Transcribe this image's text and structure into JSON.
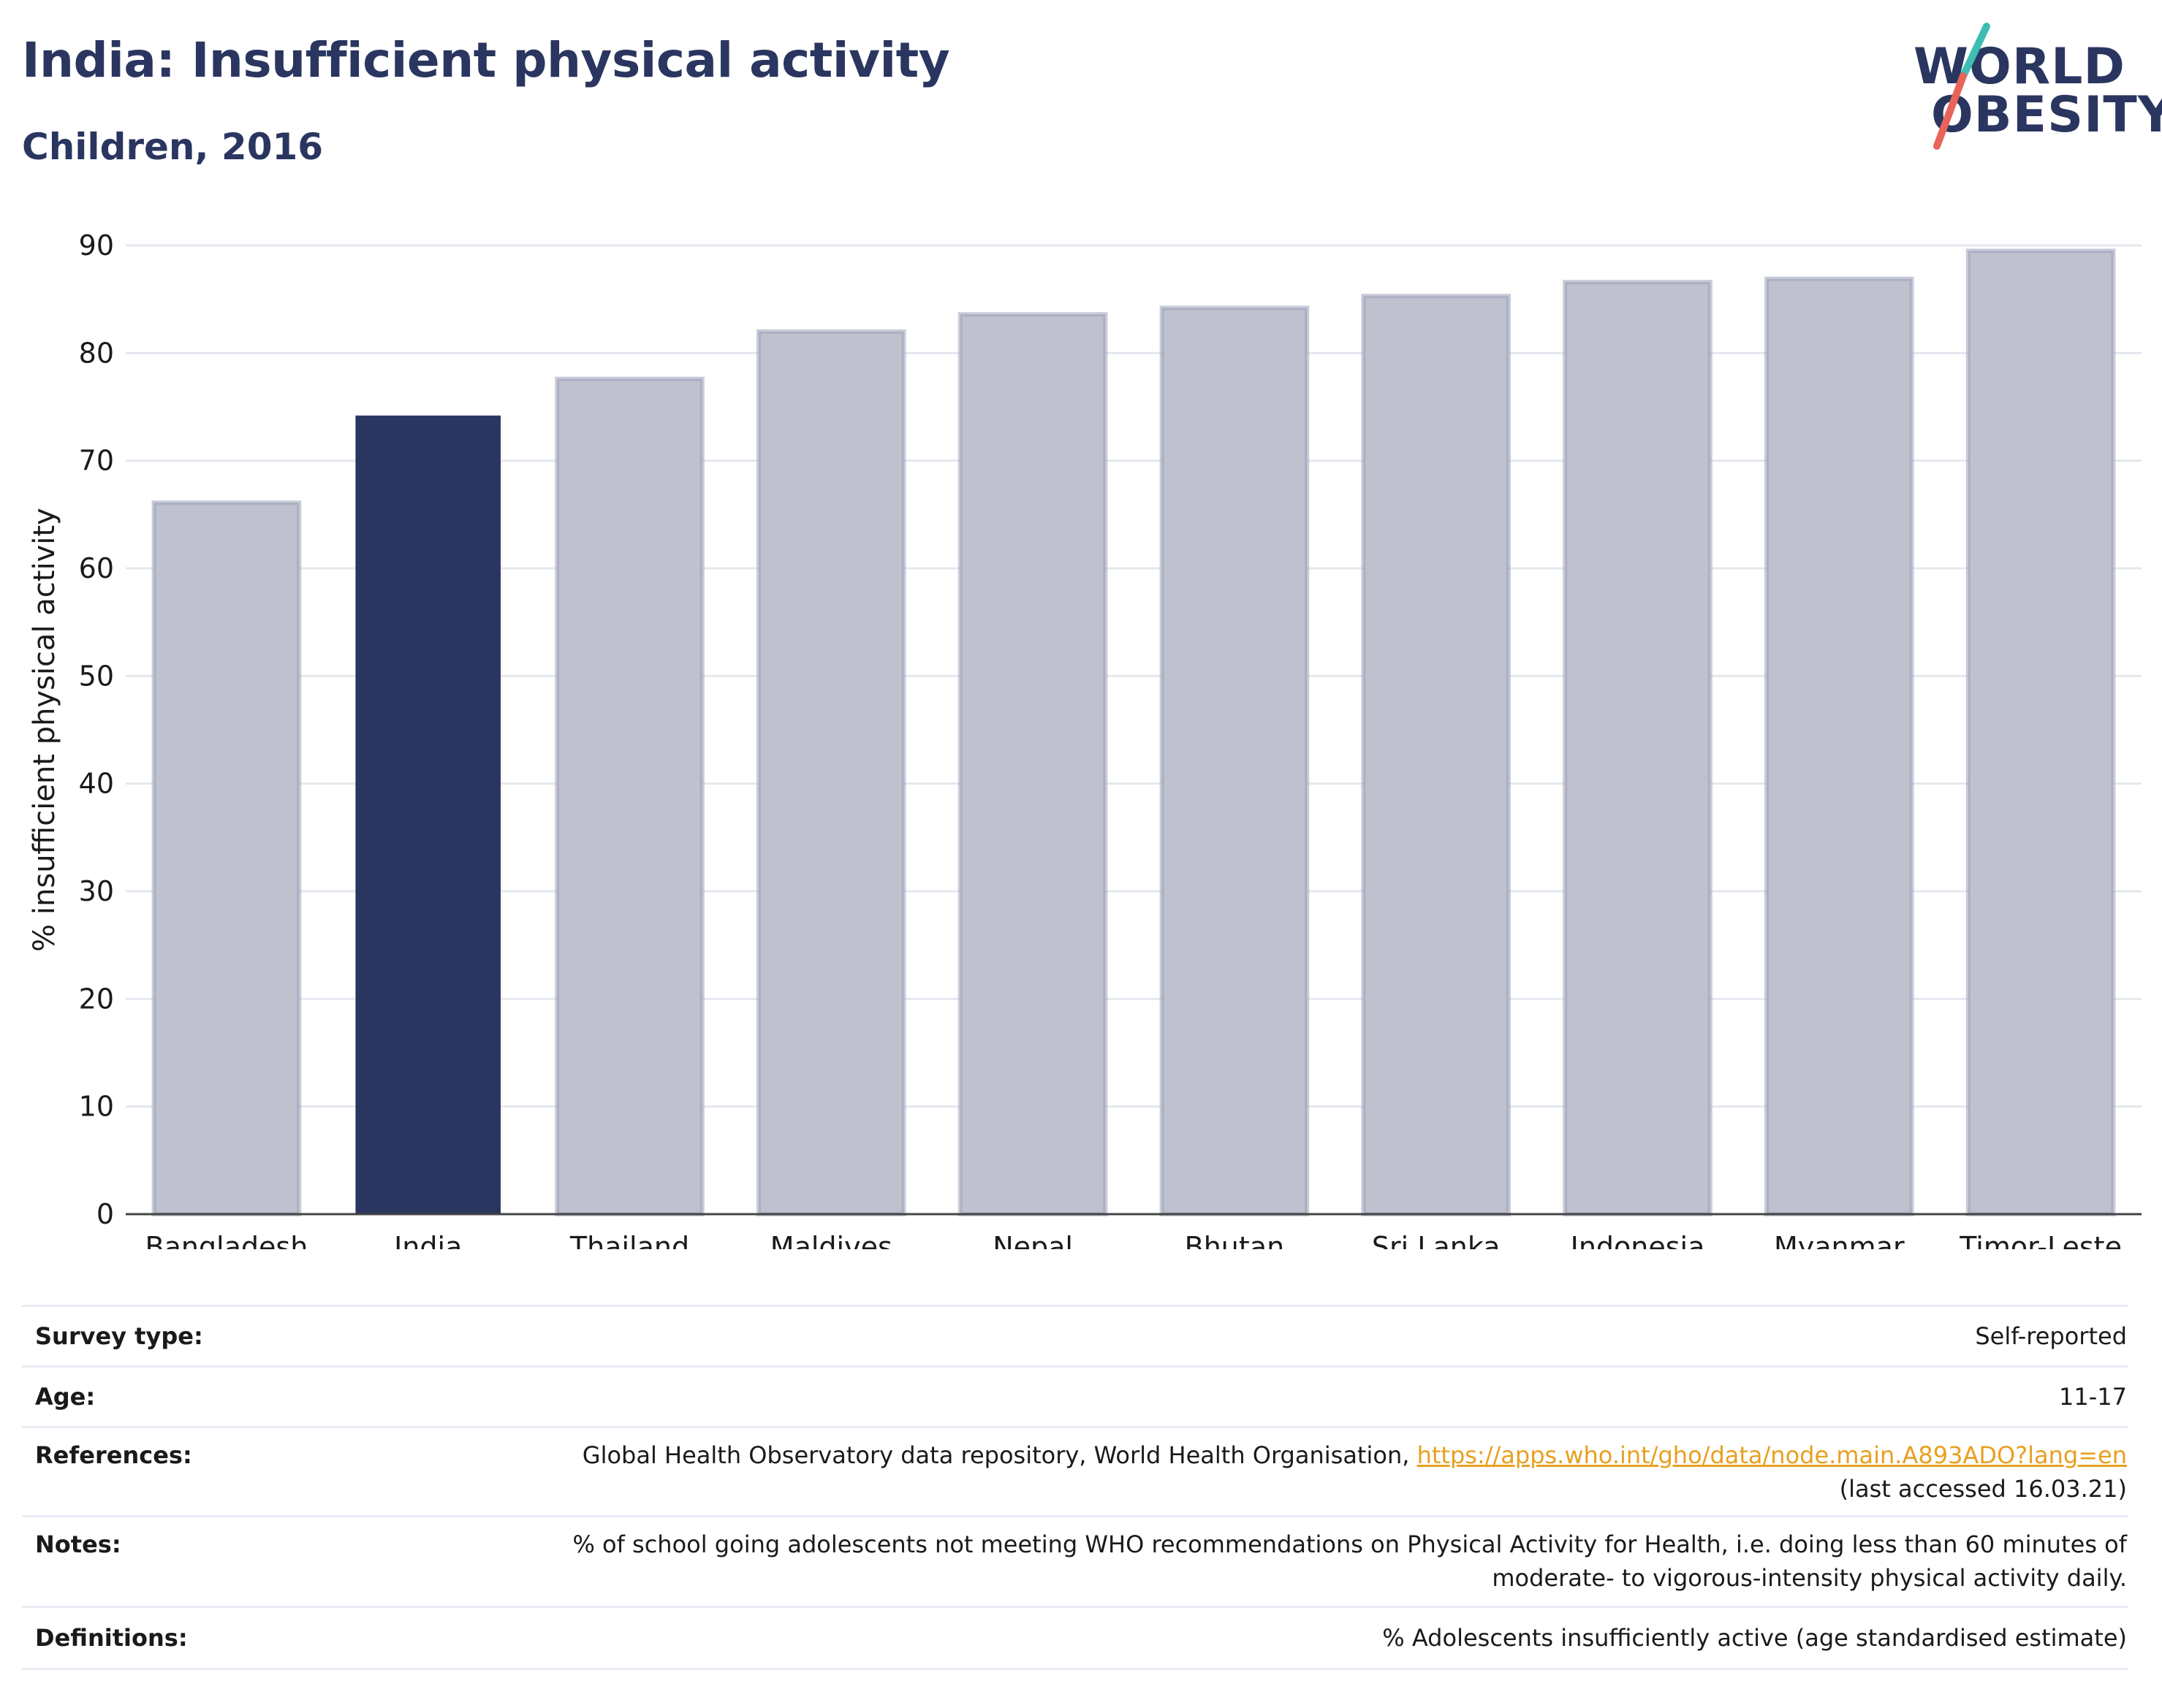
{
  "title": "India: Insufficient physical activity",
  "subtitle": "Children, 2016",
  "logo": {
    "line1": "WORLD",
    "line2": "OBESITY",
    "slash_colors": [
      "#3dbdb4",
      "#e8645a"
    ]
  },
  "colors": {
    "highlight": "#2a3660",
    "bar": "#bfc2ce",
    "bar_border": "#9aa0b8",
    "text_dark": "#2a3660",
    "link": "#e8a020"
  },
  "chart_data": {
    "type": "bar",
    "categories": [
      "Bangladesh",
      "India",
      "Thailand",
      "Maldives",
      "Nepal",
      "Bhutan",
      "Sri Lanka",
      "Indonesia",
      "Myanmar",
      "Timor-Leste"
    ],
    "values": [
      66.1,
      74.2,
      77.6,
      82.0,
      83.6,
      84.2,
      85.3,
      86.6,
      86.9,
      89.5
    ],
    "highlight": "India",
    "title": "",
    "xlabel": "",
    "ylabel": "% insufficient physical activity",
    "ylim": [
      0,
      90
    ],
    "yticks": [
      0,
      10,
      20,
      30,
      40,
      50,
      60,
      70,
      80,
      90
    ],
    "grid": true
  },
  "table": {
    "survey_type": {
      "label": "Survey type:",
      "value": "Self-reported"
    },
    "age": {
      "label": "Age:",
      "value": "11-17"
    },
    "references": {
      "label": "References:",
      "text": "Global Health Observatory data repository, World Health Organisation,",
      "link": "https://apps.who.int/gho/data/node.main.A893ADO?lang=en",
      "accessed": "(last accessed 16.03.21)"
    },
    "notes": {
      "label": "Notes:",
      "line1": "% of school going adolescents not meeting WHO recommendations on Physical Activity for Health, i.e. doing less than 60 minutes of",
      "line2": "moderate- to vigorous-intensity physical activity daily."
    },
    "definitions": {
      "label": "Definitions:",
      "value": "% Adolescents insufficiently active (age standardised estimate)"
    }
  }
}
